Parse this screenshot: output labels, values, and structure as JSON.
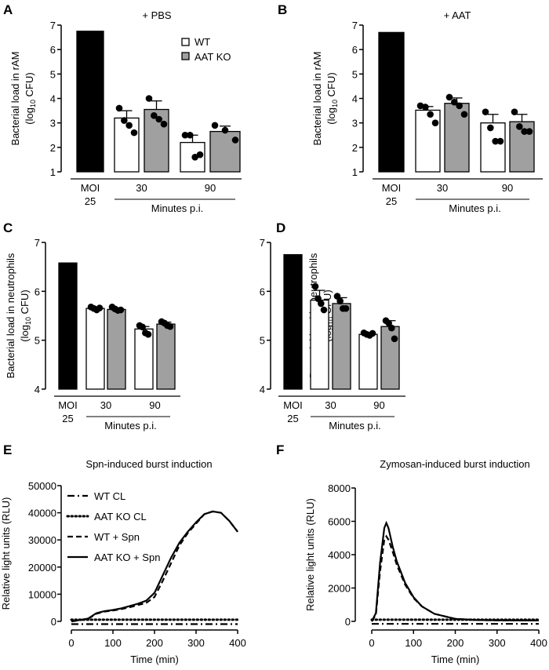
{
  "chart_data": [
    {
      "panel": "A",
      "type": "bar",
      "title": "+ PBS",
      "ylabel": [
        "Bacterial load in rAM",
        "(log",
        "10",
        " CFU)"
      ],
      "ylim": [
        1,
        7
      ],
      "yticks": [
        "1",
        "2",
        "3",
        "4",
        "5",
        "6",
        "7"
      ],
      "group_labels": {
        "moi": [
          "MOI",
          "25"
        ],
        "t30": "30",
        "t90": "90",
        "xlabel": "Minutes p.i."
      },
      "legend": [
        "WT",
        "AAT KO"
      ],
      "bars": [
        {
          "name": "MOI 25",
          "group": "moi",
          "value": 6.75,
          "sd": 0,
          "points": []
        },
        {
          "name": "WT",
          "group": "30",
          "value": 3.2,
          "sd": 0.3,
          "points": [
            3.6,
            3.1,
            2.9,
            2.6
          ]
        },
        {
          "name": "AAT KO",
          "group": "30",
          "value": 3.55,
          "sd": 0.35,
          "points": [
            4.0,
            3.3,
            3.15,
            2.95
          ]
        },
        {
          "name": "WT",
          "group": "90",
          "value": 2.2,
          "sd": 0.3,
          "points": [
            2.5,
            2.5,
            1.6,
            1.7
          ]
        },
        {
          "name": "AAT KO",
          "group": "90",
          "value": 2.65,
          "sd": 0.22,
          "points": [
            2.9,
            2.7,
            2.3
          ]
        }
      ]
    },
    {
      "panel": "B",
      "type": "bar",
      "title": "+ AAT",
      "ylabel": [
        "Bacterial load in rAM",
        "(log",
        "10",
        " CFU)"
      ],
      "ylim": [
        1,
        7
      ],
      "yticks": [
        "1",
        "2",
        "3",
        "4",
        "5",
        "6",
        "7"
      ],
      "group_labels": {
        "moi": [
          "MOI",
          "25"
        ],
        "t30": "30",
        "t90": "90",
        "xlabel": "Minutes p.i."
      },
      "bars": [
        {
          "name": "MOI 25",
          "group": "moi",
          "value": 6.7,
          "sd": 0,
          "points": []
        },
        {
          "name": "WT",
          "group": "30",
          "value": 3.52,
          "sd": 0.15,
          "points": [
            3.7,
            3.65,
            3.35,
            3.0
          ]
        },
        {
          "name": "AAT KO",
          "group": "30",
          "value": 3.8,
          "sd": 0.22,
          "points": [
            4.05,
            3.85,
            3.7,
            3.35
          ]
        },
        {
          "name": "WT",
          "group": "90",
          "value": 3.0,
          "sd": 0.35,
          "points": [
            3.45,
            2.8,
            2.25,
            2.25
          ]
        },
        {
          "name": "AAT KO",
          "group": "90",
          "value": 3.05,
          "sd": 0.3,
          "points": [
            3.45,
            2.85,
            2.65,
            2.65
          ]
        }
      ]
    },
    {
      "panel": "C",
      "type": "bar",
      "title": "",
      "ylabel": [
        "Bacterial load in neutrophils",
        "(log",
        "10",
        " CFU)"
      ],
      "ylim": [
        4,
        7
      ],
      "yticks": [
        "4",
        "5",
        "6",
        "7"
      ],
      "group_labels": {
        "moi": [
          "MOI",
          "25"
        ],
        "t30": "30",
        "t90": "90",
        "xlabel": "Minutes p.i."
      },
      "bars": [
        {
          "name": "MOI 25",
          "group": "moi",
          "value": 6.58,
          "sd": 0,
          "points": []
        },
        {
          "name": "WT",
          "group": "30",
          "value": 5.65,
          "sd": 0.02,
          "points": [
            5.68,
            5.65,
            5.62,
            5.66
          ]
        },
        {
          "name": "AAT KO",
          "group": "30",
          "value": 5.63,
          "sd": 0.02,
          "points": [
            5.68,
            5.64,
            5.61,
            5.62
          ]
        },
        {
          "name": "WT",
          "group": "90",
          "value": 5.23,
          "sd": 0.05,
          "points": [
            5.3,
            5.27,
            5.15,
            5.12
          ]
        },
        {
          "name": "AAT KO",
          "group": "90",
          "value": 5.33,
          "sd": 0.04,
          "points": [
            5.38,
            5.35,
            5.3,
            5.28
          ]
        }
      ]
    },
    {
      "panel": "D",
      "type": "bar",
      "title": "",
      "ylabel": [
        "Bacterial load in neutrophils",
        "(log",
        "10",
        " CFU)"
      ],
      "ylim": [
        4,
        7
      ],
      "yticks": [
        "4",
        "5",
        "6",
        "7"
      ],
      "group_labels": {
        "moi": [
          "MOI",
          "25"
        ],
        "t30": "30",
        "t90": "90",
        "xlabel": "Minutes p.i."
      },
      "bars": [
        {
          "name": "MOI 25",
          "group": "moi",
          "value": 6.75,
          "sd": 0,
          "points": []
        },
        {
          "name": "WT",
          "group": "30",
          "value": 5.82,
          "sd": 0.2,
          "points": [
            6.1,
            5.85,
            5.75,
            5.62
          ]
        },
        {
          "name": "AAT KO",
          "group": "30",
          "value": 5.75,
          "sd": 0.12,
          "points": [
            5.9,
            5.8,
            5.65,
            5.65
          ]
        },
        {
          "name": "WT",
          "group": "90",
          "value": 5.12,
          "sd": 0.02,
          "points": [
            5.15,
            5.12,
            5.1,
            5.14
          ]
        },
        {
          "name": "AAT KO",
          "group": "90",
          "value": 5.28,
          "sd": 0.12,
          "points": [
            5.4,
            5.35,
            5.25,
            5.03
          ]
        }
      ]
    },
    {
      "panel": "E",
      "type": "line",
      "title": "Spn-induced burst induction",
      "xlabel": "Time (min)",
      "ylabel": "Relative light units (RLU)",
      "xlim": [
        0,
        400
      ],
      "ylim": [
        0,
        50000
      ],
      "xticks": [
        "0",
        "100",
        "200",
        "300",
        "400"
      ],
      "yticks": [
        "0",
        "10000",
        "20000",
        "30000",
        "40000",
        "50000"
      ],
      "legend_position": "top-left",
      "series": [
        {
          "name": "WT CL",
          "style": "dashdot",
          "x": [
            0,
            400
          ],
          "y": [
            -1000,
            -1000
          ]
        },
        {
          "name": "AAT KO CL",
          "style": "dotted",
          "x": [
            0,
            400
          ],
          "y": [
            600,
            600
          ]
        },
        {
          "name": "WT + Spn",
          "style": "dashed",
          "x": [
            0,
            20,
            40,
            60,
            80,
            100,
            120,
            140,
            160,
            180,
            200,
            220,
            240,
            260,
            280,
            300,
            320,
            340,
            360,
            380,
            400
          ],
          "y": [
            0,
            400,
            900,
            2800,
            3600,
            4000,
            4500,
            5200,
            6000,
            6800,
            9000,
            15000,
            21500,
            28000,
            32500,
            36000,
            39500,
            40500,
            40000,
            37000,
            33000
          ]
        },
        {
          "name": "AAT KO + Spn",
          "style": "solid",
          "x": [
            0,
            20,
            40,
            60,
            80,
            100,
            120,
            140,
            160,
            180,
            200,
            220,
            240,
            260,
            280,
            300,
            320,
            340,
            360,
            380,
            400
          ],
          "y": [
            0,
            500,
            1000,
            3000,
            3800,
            4200,
            4800,
            5600,
            6500,
            7600,
            10500,
            17000,
            23500,
            29000,
            33000,
            36500,
            39500,
            40500,
            40000,
            37000,
            33000
          ]
        }
      ]
    },
    {
      "panel": "F",
      "type": "line",
      "title": "Zymosan-induced burst induction",
      "xlabel": "Time (min)",
      "ylabel": "Relative light units (RLU)",
      "xlim": [
        0,
        400
      ],
      "ylim": [
        0,
        8000
      ],
      "xticks": [
        "0",
        "100",
        "200",
        "300",
        "400"
      ],
      "yticks": [
        "0",
        "2000",
        "4000",
        "6000",
        "8000"
      ],
      "series": [
        {
          "name": "WT CL",
          "style": "dashdot",
          "x": [
            0,
            400
          ],
          "y": [
            -150,
            -150
          ]
        },
        {
          "name": "AAT KO CL",
          "style": "dotted",
          "x": [
            0,
            400
          ],
          "y": [
            100,
            100
          ]
        },
        {
          "name": "WT + Spn",
          "style": "dashed",
          "x": [
            0,
            10,
            20,
            30,
            35,
            40,
            50,
            60,
            80,
            100,
            120,
            150,
            200,
            250,
            300,
            400
          ],
          "y": [
            0,
            400,
            3000,
            4900,
            5100,
            4900,
            4200,
            3400,
            2200,
            1400,
            900,
            450,
            150,
            80,
            60,
            50
          ]
        },
        {
          "name": "AAT KO + Spn",
          "style": "solid",
          "x": [
            0,
            10,
            20,
            30,
            35,
            40,
            50,
            60,
            80,
            100,
            120,
            150,
            200,
            250,
            300,
            400
          ],
          "y": [
            0,
            500,
            3500,
            5600,
            5900,
            5600,
            4500,
            3600,
            2300,
            1450,
            900,
            450,
            150,
            80,
            60,
            50
          ]
        }
      ]
    }
  ],
  "panel_letters": [
    "A",
    "B",
    "C",
    "D",
    "E",
    "F"
  ]
}
